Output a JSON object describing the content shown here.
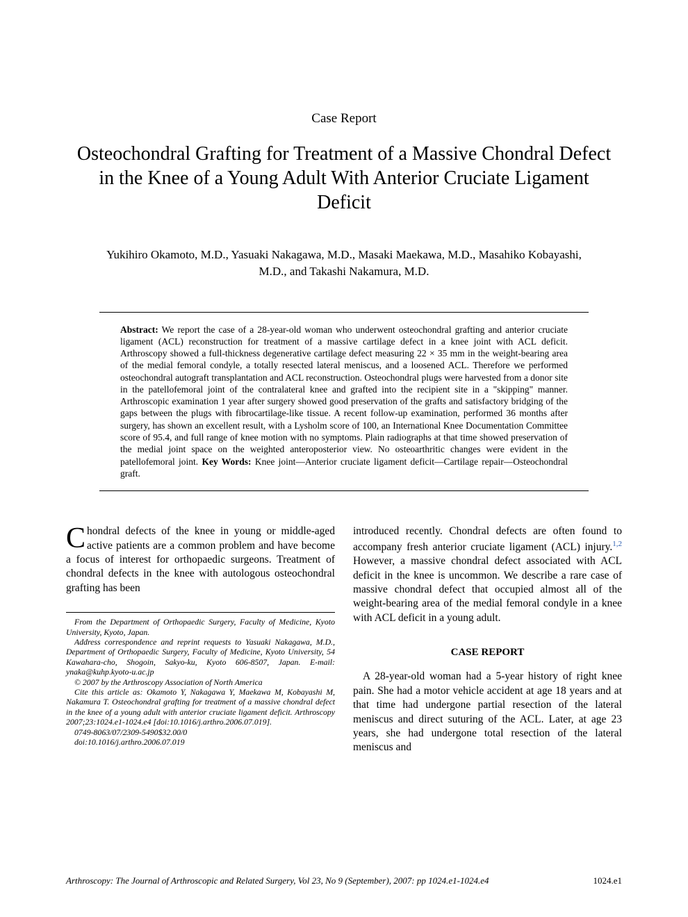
{
  "article_type": "Case Report",
  "title": "Osteochondral Grafting for Treatment of a Massive Chondral Defect in the Knee of a Young Adult With Anterior Cruciate Ligament Deficit",
  "authors": "Yukihiro Okamoto, M.D., Yasuaki Nakagawa, M.D., Masaki Maekawa, M.D., Masahiko Kobayashi, M.D., and Takashi Nakamura, M.D.",
  "abstract_label": "Abstract:",
  "abstract_text": " We report the case of a 28-year-old woman who underwent osteochondral grafting and anterior cruciate ligament (ACL) reconstruction for treatment of a massive cartilage defect in a knee joint with ACL deficit. Arthroscopy showed a full-thickness degenerative cartilage defect measuring 22 × 35 mm in the weight-bearing area of the medial femoral condyle, a totally resected lateral meniscus, and a loosened ACL. Therefore we performed osteochondral autograft transplantation and ACL reconstruction. Osteochondral plugs were harvested from a donor site in the patellofemoral joint of the contralateral knee and grafted into the recipient site in a \"skipping\" manner. Arthroscopic examination 1 year after surgery showed good preservation of the grafts and satisfactory bridging of the gaps between the plugs with fibrocartilage-like tissue. A recent follow-up examination, performed 36 months after surgery, has shown an excellent result, with a Lysholm score of 100, an International Knee Documentation Committee score of 95.4, and full range of knee motion with no symptoms. Plain radiographs at that time showed preservation of the medial joint space on the weighted anteroposterior view. No osteoarthritic changes were evident in the patellofemoral joint. ",
  "keywords_label": "Key Words:",
  "keywords_text": " Knee joint—Anterior cruciate ligament deficit—Cartilage repair—Osteochondral graft.",
  "col1_first_letter": "C",
  "col1_para1_rest": "hondral defects of the knee in young or middle-aged active patients are a common problem and have become a focus of interest for orthopaedic surgeons. Treatment of chondral defects in the knee with autologous osteochondral grafting has been",
  "affiliation": {
    "from": "From the Department of Orthopaedic Surgery, Faculty of Medicine, Kyoto University, Kyoto, Japan.",
    "address": "Address correspondence and reprint requests to Yasuaki Nakagawa, M.D., Department of Orthopaedic Surgery, Faculty of Medicine, Kyoto University, 54 Kawahara-cho, Shogoin, Sakyo-ku, Kyoto 606-8507, Japan. E-mail: ynaka@kuhp.kyoto-u.ac.jp",
    "copyright": "© 2007 by the Arthroscopy Association of North America",
    "cite": "Cite this article as: Okamoto Y, Nakagawa Y, Maekawa M, Kobayashi M, Nakamura T. Osteochondral grafting for treatment of a massive chondral defect in the knee of a young adult with anterior cruciate ligament deficit. Arthroscopy 2007;23:1024.e1-1024.e4 [doi:10.1016/j.arthro.2006.07.019].",
    "issn": "0749-8063/07/2309-5490$32.00/0",
    "doi": "doi:10.1016/j.arthro.2006.07.019"
  },
  "col2_para1a": "introduced recently. Chondral defects are often found to accompany fresh anterior cruciate ligament (ACL) injury.",
  "col2_refs": "1,2",
  "col2_para1b": " However, a massive chondral defect associated with ACL deficit in the knee is uncommon. We describe a rare case of massive chondral defect that occupied almost all of the weight-bearing area of the medial femoral condyle in a knee with ACL deficit in a young adult.",
  "case_report_heading": "CASE REPORT",
  "col2_para2": "A 28-year-old woman had a 5-year history of right knee pain. She had a motor vehicle accident at age 18 years and at that time had undergone partial resection of the lateral meniscus and direct suturing of the ACL. Later, at age 23 years, she had undergone total resection of the lateral meniscus and",
  "footer_journal": "Arthroscopy: The Journal of Arthroscopic and Related Surgery, Vol 23, No 9 (September), 2007: pp 1024.e1-1024.e4",
  "footer_page": "1024.e1",
  "colors": {
    "text": "#000000",
    "background": "#ffffff",
    "link": "#2a5db0"
  },
  "typography": {
    "title_fontsize": 28,
    "body_fontsize": 15.5,
    "abstract_fontsize": 13.5,
    "affil_fontsize": 11.8,
    "footer_fontsize": 13,
    "font_family": "Times New Roman"
  }
}
